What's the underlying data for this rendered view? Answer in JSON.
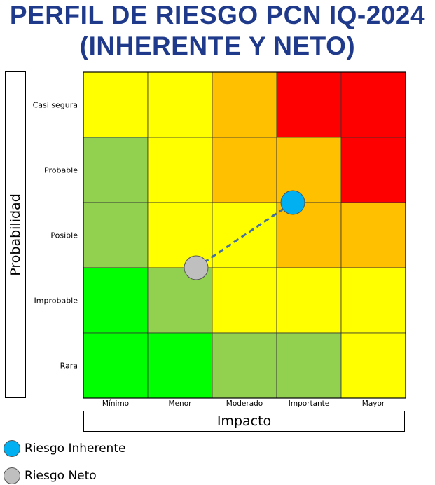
{
  "title_line1": "PERFIL DE RIESGO PCN IQ-2024",
  "title_line2": "(INHERENTE Y NETO)",
  "chart_data": {
    "type": "heatmap",
    "ylabel": "Probabilidad",
    "xlabel": "Impacto",
    "rows": [
      "Casi segura",
      "Probable",
      "Posible",
      "Improbable",
      "Rara"
    ],
    "cols": [
      "Mínimo",
      "Menor",
      "Moderado",
      "Importante",
      "Mayor"
    ],
    "cell_colors": [
      [
        "#ffff00",
        "#ffff00",
        "#ffc000",
        "#ff0000",
        "#ff0000"
      ],
      [
        "#92d050",
        "#ffff00",
        "#ffc000",
        "#ffc000",
        "#ff0000"
      ],
      [
        "#92d050",
        "#ffff00",
        "#ffff00",
        "#ffc000",
        "#ffc000"
      ],
      [
        "#00ff00",
        "#92d050",
        "#ffff00",
        "#ffff00",
        "#ffff00"
      ],
      [
        "#00ff00",
        "#00ff00",
        "#92d050",
        "#92d050",
        "#ffff00"
      ]
    ],
    "points": [
      {
        "name": "Riesgo Inherente",
        "impact": 3.75,
        "probability": 3.5,
        "color": "#00b0f0"
      },
      {
        "name": "Riesgo Neto",
        "impact": 2.25,
        "probability": 2.5,
        "color": "#bfbfbf"
      }
    ],
    "connector": {
      "style": "dashed",
      "color": "#44719f"
    }
  },
  "legend": [
    {
      "label": "Riesgo Inherente",
      "color": "#00b0f0"
    },
    {
      "label": "Riesgo Neto",
      "color": "#bfbfbf"
    }
  ]
}
